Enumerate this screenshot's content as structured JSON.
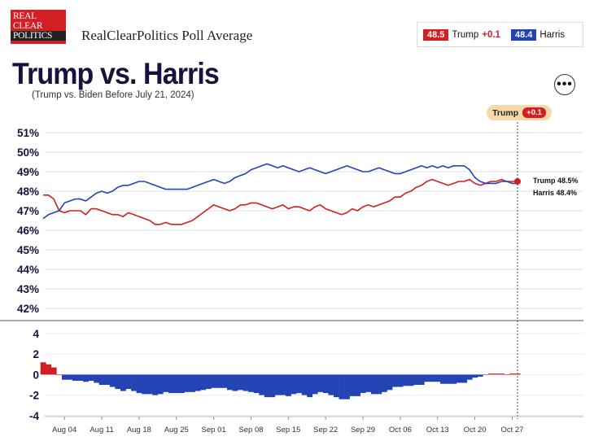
{
  "header": {
    "logo_lines": [
      "REAL",
      "CLEAR",
      "POLITICS"
    ],
    "site_title": "RealClearPolitics Poll Average",
    "title": "Trump vs. Harris",
    "subtitle": "(Trump vs. Biden Before July 21, 2024)"
  },
  "legend": {
    "trump": {
      "value": "48.5",
      "name": "Trump",
      "change": "+0.1",
      "color": "#d21f23"
    },
    "harris": {
      "value": "48.4",
      "name": "Harris",
      "color": "#2443b5"
    }
  },
  "leader_pill": {
    "name": "Trump",
    "change": "+0.1"
  },
  "more_icon": "more-horizontal-icon",
  "chart_data": {
    "type": "line",
    "x": [
      "Jul 31",
      "Aug 01",
      "Aug 02",
      "Aug 03",
      "Aug 04",
      "Aug 05",
      "Aug 06",
      "Aug 07",
      "Aug 08",
      "Aug 09",
      "Aug 10",
      "Aug 11",
      "Aug 12",
      "Aug 13",
      "Aug 14",
      "Aug 15",
      "Aug 16",
      "Aug 17",
      "Aug 18",
      "Aug 19",
      "Aug 20",
      "Aug 21",
      "Aug 22",
      "Aug 23",
      "Aug 24",
      "Aug 25",
      "Aug 26",
      "Aug 27",
      "Aug 28",
      "Aug 29",
      "Aug 30",
      "Aug 31",
      "Sep 01",
      "Sep 02",
      "Sep 03",
      "Sep 04",
      "Sep 05",
      "Sep 06",
      "Sep 07",
      "Sep 08",
      "Sep 09",
      "Sep 10",
      "Sep 11",
      "Sep 12",
      "Sep 13",
      "Sep 14",
      "Sep 15",
      "Sep 16",
      "Sep 17",
      "Sep 18",
      "Sep 19",
      "Sep 20",
      "Sep 21",
      "Sep 22",
      "Sep 23",
      "Sep 24",
      "Sep 25",
      "Sep 26",
      "Sep 27",
      "Sep 28",
      "Sep 29",
      "Sep 30",
      "Oct 01",
      "Oct 02",
      "Oct 03",
      "Oct 04",
      "Oct 05",
      "Oct 06",
      "Oct 07",
      "Oct 08",
      "Oct 09",
      "Oct 10",
      "Oct 11",
      "Oct 12",
      "Oct 13",
      "Oct 14",
      "Oct 15",
      "Oct 16",
      "Oct 17",
      "Oct 18",
      "Oct 19",
      "Oct 20",
      "Oct 21",
      "Oct 22",
      "Oct 23",
      "Oct 24",
      "Oct 25",
      "Oct 26",
      "Oct 27",
      "Oct 28"
    ],
    "series": [
      {
        "name": "Trump",
        "color": "#d21f23",
        "values": [
          47.8,
          47.8,
          47.6,
          47.0,
          46.9,
          47.0,
          47.0,
          47.0,
          46.8,
          47.1,
          47.1,
          47.0,
          46.9,
          46.8,
          46.8,
          46.7,
          46.9,
          46.8,
          46.7,
          46.6,
          46.5,
          46.3,
          46.3,
          46.4,
          46.3,
          46.3,
          46.3,
          46.4,
          46.5,
          46.7,
          46.9,
          47.1,
          47.3,
          47.2,
          47.1,
          47.0,
          47.1,
          47.3,
          47.3,
          47.4,
          47.4,
          47.3,
          47.2,
          47.1,
          47.2,
          47.3,
          47.1,
          47.2,
          47.2,
          47.1,
          47.0,
          47.2,
          47.3,
          47.1,
          47.0,
          46.9,
          46.8,
          46.9,
          47.1,
          47.0,
          47.2,
          47.3,
          47.2,
          47.3,
          47.4,
          47.5,
          47.7,
          47.7,
          47.9,
          48.0,
          48.2,
          48.3,
          48.5,
          48.6,
          48.5,
          48.4,
          48.3,
          48.4,
          48.5,
          48.5,
          48.6,
          48.4,
          48.3,
          48.4,
          48.5,
          48.5,
          48.6,
          48.5,
          48.5,
          48.5
        ]
      },
      {
        "name": "Harris",
        "color": "#2443b5",
        "values": [
          46.6,
          46.8,
          46.9,
          47.0,
          47.4,
          47.5,
          47.6,
          47.6,
          47.5,
          47.7,
          47.9,
          48.0,
          47.9,
          48.0,
          48.2,
          48.3,
          48.3,
          48.4,
          48.5,
          48.5,
          48.4,
          48.3,
          48.2,
          48.1,
          48.1,
          48.1,
          48.1,
          48.1,
          48.2,
          48.3,
          48.4,
          48.5,
          48.6,
          48.5,
          48.4,
          48.5,
          48.7,
          48.8,
          48.9,
          49.1,
          49.2,
          49.3,
          49.4,
          49.3,
          49.2,
          49.3,
          49.2,
          49.1,
          49.0,
          49.1,
          49.2,
          49.1,
          49.0,
          48.9,
          49.0,
          49.1,
          49.2,
          49.3,
          49.2,
          49.1,
          49.0,
          49.0,
          49.1,
          49.2,
          49.1,
          49.0,
          48.9,
          48.9,
          49.0,
          49.1,
          49.2,
          49.3,
          49.2,
          49.3,
          49.2,
          49.3,
          49.2,
          49.3,
          49.3,
          49.3,
          49.1,
          48.7,
          48.5,
          48.4,
          48.4,
          48.4,
          48.5,
          48.5,
          48.4,
          48.4
        ]
      }
    ],
    "spread": {
      "name": "Trump - Harris",
      "values": [
        1.2,
        1.0,
        0.7,
        0.0,
        -0.5,
        -0.5,
        -0.6,
        -0.6,
        -0.7,
        -0.6,
        -0.8,
        -1.0,
        -1.0,
        -1.2,
        -1.4,
        -1.6,
        -1.4,
        -1.6,
        -1.8,
        -1.9,
        -1.9,
        -2.0,
        -1.9,
        -1.7,
        -1.8,
        -1.8,
        -1.8,
        -1.7,
        -1.7,
        -1.6,
        -1.5,
        -1.4,
        -1.3,
        -1.3,
        -1.3,
        -1.5,
        -1.6,
        -1.5,
        -1.6,
        -1.7,
        -1.8,
        -2.0,
        -2.2,
        -2.2,
        -2.0,
        -2.0,
        -2.1,
        -1.9,
        -1.8,
        -2.0,
        -2.2,
        -1.9,
        -1.7,
        -1.8,
        -2.0,
        -2.2,
        -2.4,
        -2.4,
        -2.1,
        -2.1,
        -1.8,
        -1.7,
        -1.9,
        -1.9,
        -1.7,
        -1.5,
        -1.2,
        -1.2,
        -1.1,
        -1.1,
        -1.0,
        -1.0,
        -0.7,
        -0.7,
        -0.7,
        -0.9,
        -0.9,
        -0.9,
        -0.8,
        -0.8,
        -0.5,
        -0.3,
        -0.2,
        0.0,
        0.1,
        0.1,
        0.1,
        0.0,
        0.1,
        0.1
      ],
      "colors": {
        "positive": "#d21f23",
        "negative": "#2443b5"
      }
    },
    "x_ticks": [
      "Aug 04",
      "Aug 11",
      "Aug 18",
      "Aug 25",
      "Sep 01",
      "Sep 08",
      "Sep 15",
      "Sep 22",
      "Sep 29",
      "Oct 06",
      "Oct 13",
      "Oct 20",
      "Oct 27"
    ],
    "y_ticks": [
      "51%",
      "50%",
      "49%",
      "48%",
      "47%",
      "46%",
      "45%",
      "44%",
      "43%",
      "42%"
    ],
    "ylim": [
      41.5,
      51
    ],
    "spread_ticks": [
      "4",
      "2",
      "0",
      "-2",
      "-4"
    ],
    "spread_ylim": [
      -4,
      4
    ],
    "end_labels": {
      "trump": "Trump 48.5%",
      "harris": "Harris 48.4%"
    },
    "grid": true
  }
}
